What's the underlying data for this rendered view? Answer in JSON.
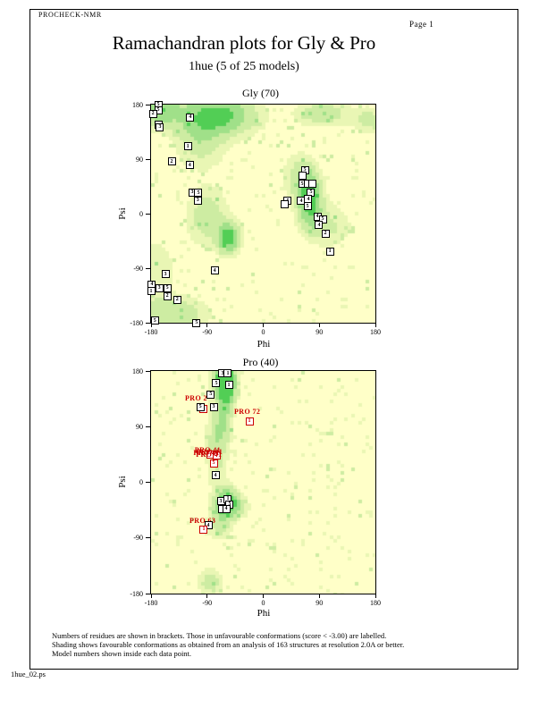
{
  "page": {
    "app_label": "PROCHECK-NMR",
    "page_label": "Page 1",
    "title": "Ramachandran plots for Gly & Pro",
    "subtitle": "1hue (5 of 25 models)",
    "filename": "1hue_02.ps"
  },
  "footer": {
    "lines": [
      "Numbers of residues are shown in brackets. Those in unfavourable conformations (score < -3.00) are labelled.",
      "Shading shows favourable conformations as obtained from an analysis of 163 structures at resolution 2.0A or better.",
      "Model numbers shown inside each data point."
    ]
  },
  "colors": {
    "red": "#cc0000",
    "plot_bg": "#ffffc8",
    "shade_ramp": [
      "#ffffc8",
      "#e9f6b4",
      "#cdeca2",
      "#a0e089",
      "#52ce55"
    ]
  },
  "chart_data": [
    {
      "id": "gly",
      "type": "scatter",
      "title": "Gly (70)",
      "xlabel": "Phi",
      "ylabel": "Psi",
      "xlim": [
        -180,
        180
      ],
      "ylim": [
        -180,
        180
      ],
      "x_ticks": [
        -180,
        -90,
        0,
        90,
        180
      ],
      "y_ticks": [
        180,
        90,
        0,
        -90,
        -180
      ],
      "grid": false,
      "points": [
        [
          -168.5,
          180,
          "5"
        ],
        [
          -168.5,
          171,
          "5"
        ],
        [
          -177,
          165,
          "2"
        ],
        [
          -168.5,
          147.5,
          ""
        ],
        [
          -165.7,
          143,
          "3"
        ],
        [
          -117,
          159,
          "4"
        ],
        [
          -121,
          111,
          "1"
        ],
        [
          -147,
          86,
          "2"
        ],
        [
          -118,
          80,
          "4"
        ],
        [
          -114,
          35,
          "3"
        ],
        [
          -104,
          34,
          "5"
        ],
        [
          -105,
          22,
          "3"
        ],
        [
          66.7,
          72,
          "5"
        ],
        [
          62.4,
          63,
          ""
        ],
        [
          62.4,
          49,
          "5"
        ],
        [
          72.4,
          50,
          ""
        ],
        [
          79.6,
          49,
          ""
        ],
        [
          76.7,
          35,
          "5"
        ],
        [
          60.9,
          21,
          "4"
        ],
        [
          72.4,
          24,
          "4"
        ],
        [
          39.4,
          21,
          "5"
        ],
        [
          35.1,
          16,
          ""
        ],
        [
          71,
          12,
          "5"
        ],
        [
          86.8,
          -4.5,
          "4"
        ],
        [
          95.4,
          -9,
          "5"
        ],
        [
          89.6,
          -19,
          "4"
        ],
        [
          99.7,
          -32.5,
          "2"
        ],
        [
          107,
          -62,
          "1"
        ],
        [
          -157,
          -100,
          "3"
        ],
        [
          -78,
          -94,
          "4"
        ],
        [
          -178.6,
          -117,
          "4"
        ],
        [
          -167,
          -122.5,
          "3"
        ],
        [
          -154,
          -122.5,
          "5"
        ],
        [
          -180,
          -128,
          "1"
        ],
        [
          -154,
          -136,
          "2"
        ],
        [
          -138,
          -142,
          "2"
        ],
        [
          -174,
          -177,
          "5"
        ],
        [
          -107,
          -180,
          "5"
        ]
      ],
      "labels": [],
      "shading_regions": [
        [
          -75,
          162,
          1.1,
          42,
          22
        ],
        [
          -170,
          172,
          0.9,
          22,
          18
        ],
        [
          -100,
          120,
          0.45,
          28,
          30
        ],
        [
          -55,
          -40,
          1.25,
          12,
          16
        ],
        [
          -90,
          -5,
          0.5,
          22,
          32
        ],
        [
          -140,
          -165,
          0.55,
          35,
          18
        ],
        [
          -170,
          -100,
          0.3,
          20,
          40
        ],
        [
          75,
          20,
          1.15,
          13,
          28
        ],
        [
          95,
          165,
          0.55,
          28,
          14
        ],
        [
          170,
          155,
          0.45,
          18,
          14
        ],
        [
          60,
          60,
          0.5,
          18,
          25
        ],
        [
          105,
          -20,
          0.35,
          25,
          25
        ]
      ]
    },
    {
      "id": "pro",
      "type": "scatter",
      "title": "Pro (40)",
      "xlabel": "Phi",
      "ylabel": "Psi",
      "xlim": [
        -180,
        180
      ],
      "ylim": [
        -180,
        180
      ],
      "x_ticks": [
        -180,
        -90,
        0,
        90,
        180
      ],
      "y_ticks": [
        180,
        90,
        0,
        -90,
        -180
      ],
      "grid": false,
      "points": [
        [
          -65.3,
          176,
          "3"
        ],
        [
          -56.7,
          176,
          "1"
        ],
        [
          -75.3,
          160,
          "5"
        ],
        [
          -55.2,
          157,
          "1"
        ],
        [
          -84,
          142,
          "5"
        ],
        [
          -95.4,
          119,
          "",
          "r"
        ],
        [
          -101,
          122,
          "5"
        ],
        [
          -79.6,
          122,
          "3"
        ],
        [
          -22.2,
          99,
          "1",
          "r"
        ],
        [
          -84,
          45.5,
          "",
          "r"
        ],
        [
          -74,
          44,
          "",
          "r"
        ],
        [
          -79.6,
          31,
          "5",
          "r"
        ],
        [
          -76.7,
          11,
          "4"
        ],
        [
          -68.1,
          -31,
          "3"
        ],
        [
          -56.7,
          -27,
          "1"
        ],
        [
          -53.8,
          -35.5,
          "5"
        ],
        [
          -65.3,
          -44,
          ""
        ],
        [
          -59.5,
          -42.7,
          "4"
        ],
        [
          -88.2,
          -70,
          "4"
        ],
        [
          -95.4,
          -76,
          "1",
          "r"
        ]
      ],
      "labels": [
        {
          "text": "PRO 2",
          "phi": -125.5,
          "psi": 132.5,
          "front": false
        },
        {
          "text": "PRO 72",
          "phi": -46.6,
          "psi": 111,
          "front": false
        },
        {
          "text": "PRO 63",
          "phi": -118.3,
          "psi": -66,
          "front": false
        },
        {
          "text": "PRO 41",
          "phi": -110,
          "psi": 49,
          "front": true
        },
        {
          "text": "PRO 41",
          "phi": -107,
          "psi": 46,
          "front": true
        },
        {
          "text": "PRO 41",
          "phi": -112,
          "psi": 44,
          "front": true
        },
        {
          "text": "PRO 41",
          "phi": -108,
          "psi": 41,
          "front": true
        }
      ],
      "shading_regions": [
        [
          -60,
          152,
          1.35,
          10,
          20
        ],
        [
          -63,
          172,
          1.0,
          13,
          14
        ],
        [
          -75,
          60,
          0.5,
          11,
          45
        ],
        [
          -58,
          -32,
          1.2,
          12,
          16
        ],
        [
          -85,
          -162,
          0.5,
          13,
          14
        ],
        [
          -62,
          100,
          0.45,
          10,
          28
        ],
        [
          -70,
          -65,
          0.45,
          14,
          18
        ],
        [
          -40,
          -40,
          0.4,
          12,
          12
        ]
      ]
    }
  ]
}
